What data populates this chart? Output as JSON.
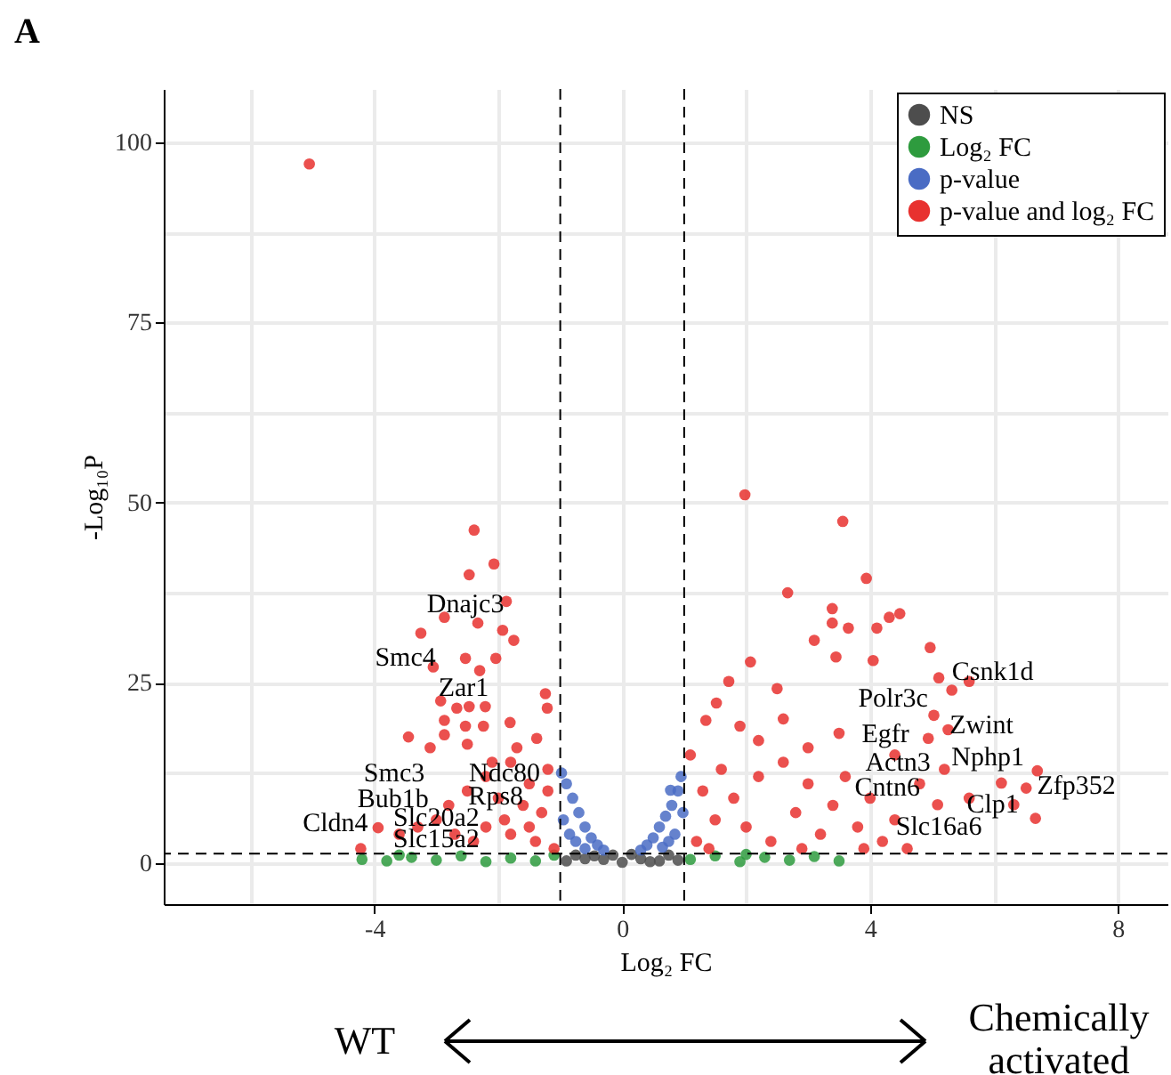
{
  "chart_data": {
    "type": "scatter",
    "xlabel": "Log₂ FC",
    "ylabel": "-Log₁₀P",
    "xlim": [
      -7.4,
      8.8
    ],
    "ylim": [
      -5.7,
      107.4
    ],
    "xticks": [
      {
        "value": -6,
        "label": null
      },
      -4,
      {
        "value": -2,
        "label": null
      },
      0,
      {
        "value": 2,
        "label": null
      },
      4,
      {
        "value": 6,
        "label": null
      },
      8
    ],
    "yticks": [
      0,
      {
        "value": 12.5,
        "label": null
      },
      25,
      {
        "value": 37.5,
        "label": null
      },
      50,
      {
        "value": 62.5,
        "label": null
      },
      75,
      {
        "value": 87.5,
        "label": null
      },
      100
    ],
    "grid": true,
    "legend": "top right",
    "marker": "circle",
    "series": [
      {
        "name": "NS",
        "color": "#4d4d4d",
        "x": [
          -0.9,
          -0.6,
          -0.3,
          0,
          0.3,
          0.6,
          0.9,
          -0.75,
          0.15,
          -0.15,
          0.45,
          -0.45,
          0.75
        ],
        "values": [
          0.3,
          0.6,
          0.5,
          0.1,
          0.6,
          0.3,
          0.4,
          1.1,
          1.2,
          1.1,
          0.2,
          1.0,
          1.1
        ]
      },
      {
        "name": "Log₂ FC",
        "color": "#2e9b3e",
        "x": [
          -4.2,
          -3.8,
          -3.4,
          -3.0,
          -2.6,
          -2.2,
          -1.8,
          -1.4,
          -1.1,
          1.1,
          1.5,
          1.9,
          2.3,
          2.7,
          3.1,
          3.5,
          -3.6,
          2.0
        ],
        "values": [
          0.5,
          0.3,
          0.8,
          0.4,
          1.0,
          0.2,
          0.7,
          0.3,
          1.1,
          0.5,
          1.0,
          0.2,
          0.8,
          0.4,
          0.9,
          0.3,
          1.1,
          1.2
        ]
      },
      {
        "name": "p-value",
        "color": "#4a6cc4",
        "x": [
          -0.98,
          -0.9,
          -0.8,
          -0.7,
          -0.6,
          -0.5,
          -0.4,
          -0.3,
          -0.95,
          -0.85,
          -0.75,
          -0.6,
          0.3,
          0.4,
          0.5,
          0.6,
          0.7,
          0.8,
          0.9,
          0.95,
          0.85,
          0.75,
          0.65,
          0.98,
          0.78
        ],
        "values": [
          12.5,
          11,
          9,
          7,
          5,
          3.5,
          2.5,
          1.8,
          6,
          4,
          3,
          2,
          1.8,
          2.5,
          3.5,
          5,
          6.5,
          8,
          10,
          12,
          4,
          3,
          2.2,
          7,
          10.1
        ]
      },
      {
        "name": "p-value and log₂ FC",
        "color": "#e8312f",
        "x": [
          -5.05,
          -2.39,
          -2.07,
          -2.47,
          -1.87,
          -2.87,
          -2.33,
          -1.93,
          -3.25,
          -1.75,
          -2.53,
          -2.04,
          -3.05,
          -2.3,
          -1.24,
          -1.21,
          -2.93,
          -2.67,
          -2.47,
          -2.21,
          -2.87,
          -2.53,
          -2.24,
          -1.81,
          -3.45,
          -2.87,
          -3.1,
          -2.5,
          -1.38,
          -4.22,
          -3.94,
          -2.2,
          -1.8,
          -1.5,
          -1.2,
          -2.0,
          -1.6,
          -1.3,
          -2.5,
          -2.8,
          -3.0,
          -3.3,
          -3.6,
          -2.2,
          -1.8,
          -1.4,
          -1.1,
          -1.5,
          -1.9,
          -2.4,
          -2.7,
          -1.2,
          -1.7,
          -2.1,
          1.98,
          3.56,
          3.94,
          2.67,
          3.39,
          3.39,
          3.65,
          4.31,
          4.48,
          3.1,
          4.11,
          4.97,
          3.45,
          4.05,
          2.07,
          5.11,
          5.6,
          5.32,
          1.72,
          1.52,
          1.35,
          5.03,
          5.26,
          4.94,
          6.52,
          6.7,
          6.67,
          6.32,
          6.12,
          5.09,
          4.6,
          2.5,
          1.2,
          1.5,
          1.8,
          2.2,
          2.6,
          3.0,
          3.4,
          3.8,
          4.2,
          1.3,
          2.0,
          2.4,
          2.8,
          3.2,
          3.6,
          4.0,
          4.4,
          1.6,
          2.2,
          3.0,
          1.1,
          1.9,
          2.6,
          3.5,
          4.4,
          4.8,
          5.2,
          5.6,
          1.4,
          2.9,
          3.9
        ],
        "values": [
          97,
          46.2,
          41.5,
          40.0,
          36.3,
          34.1,
          33.3,
          32.3,
          31.9,
          30.9,
          28.4,
          28.4,
          27.2,
          26.7,
          23.5,
          21.5,
          22.5,
          21.5,
          21.7,
          21.7,
          19.8,
          19.0,
          19.0,
          19.5,
          17.5,
          17.8,
          16.0,
          16.5,
          17.3,
          2.0,
          4.9,
          12,
          14,
          11,
          13,
          9,
          8,
          7,
          10,
          8,
          6,
          5,
          4,
          5,
          4,
          3,
          2,
          5,
          6,
          3,
          4,
          10,
          16,
          14,
          51.1,
          47.4,
          39.5,
          37.5,
          35.3,
          33.3,
          32.6,
          34.1,
          34.6,
          30.9,
          32.6,
          29.9,
          28.6,
          28.1,
          27.9,
          25.7,
          25.2,
          24.0,
          25.2,
          22.2,
          19.8,
          20.5,
          18.5,
          17.3,
          10.4,
          12.8,
          6.2,
          8.1,
          11.1,
          8.1,
          2.0,
          24.2,
          3,
          6,
          9,
          12,
          14,
          11,
          8,
          5,
          3,
          10,
          5,
          3,
          7,
          4,
          12,
          9,
          6,
          13,
          17,
          16,
          15,
          19,
          20,
          18,
          15,
          11,
          13,
          9,
          2,
          2,
          2
        ]
      }
    ],
    "ref_lines": [
      {
        "axis": "x",
        "value": -1,
        "color": "#000000",
        "line_style": "dashed"
      },
      {
        "axis": "x",
        "value": 1,
        "color": "#000000",
        "line_style": "dashed"
      },
      {
        "axis": "y",
        "value": 1.3,
        "color": "#000000",
        "line_style": "dashed"
      }
    ],
    "annotations": [
      "A",
      "WT",
      "Chemically activated",
      "Dnajc3",
      "Smc4",
      "Zar1",
      "Smc3",
      "Ndc80",
      "Bub1b",
      "Rps8",
      "Cldn4",
      "Slc20a2",
      "Slc15a2",
      "Csnk1d",
      "Polr3c",
      "Zwint",
      "Egfr",
      "Nphp1",
      "Actn3",
      "Zfp352",
      "Cntn6",
      "Clp1",
      "Slc16a6"
    ]
  }
}
